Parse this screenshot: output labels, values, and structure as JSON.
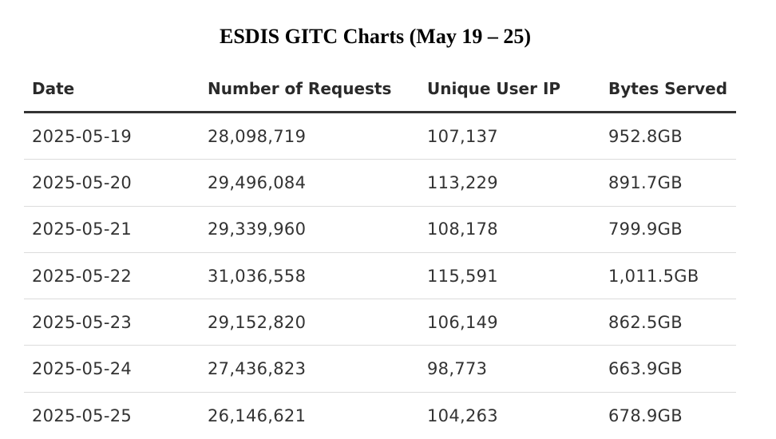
{
  "title": "ESDIS GITC Charts (May 19 – 25)",
  "table": {
    "headers": [
      "Date",
      "Number of Requests",
      "Unique User IP",
      "Bytes Served"
    ],
    "rows": [
      [
        "2025-05-19",
        "28,098,719",
        "107,137",
        "952.8GB"
      ],
      [
        "2025-05-20",
        "29,496,084",
        "113,229",
        "891.7GB"
      ],
      [
        "2025-05-21",
        "29,339,960",
        "108,178",
        "799.9GB"
      ],
      [
        "2025-05-22",
        "31,036,558",
        "115,591",
        "1,011.5GB"
      ],
      [
        "2025-05-23",
        "29,152,820",
        "106,149",
        "862.5GB"
      ],
      [
        "2025-05-24",
        "27,436,823",
        "98,773",
        "663.9GB"
      ],
      [
        "2025-05-25",
        "26,146,621",
        "104,263",
        "678.9GB"
      ]
    ]
  }
}
